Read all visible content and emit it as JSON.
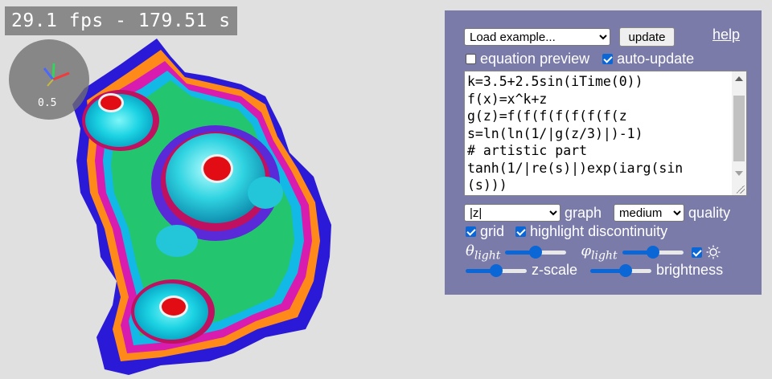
{
  "overlay": {
    "fps_text": "29.1 fps - 179.51 s",
    "axes_scale": "0.5"
  },
  "panel": {
    "example_select": "Load example...",
    "update_label": "update",
    "help_label": "help",
    "equation_preview": {
      "label": "equation preview",
      "checked": false
    },
    "auto_update": {
      "label": "auto-update",
      "checked": true
    },
    "equation_lines": [
      "k=3.5+2.5sin(iTime(0))",
      "f(x)=x^k+z",
      "g(z)=f(f(f(f(f(f(f(z",
      "s=ln(ln(1/|g(z/3)|)-1)",
      "# artistic part",
      "tanh(1/|re(s)|)exp(iarg(sin",
      "(s)))"
    ],
    "graph_select": "|z|",
    "graph_label": "graph",
    "quality_select": "medium",
    "quality_label": "quality",
    "grid": {
      "label": "grid",
      "checked": true
    },
    "highlight_discontinuity": {
      "label": "highlight discontinuity",
      "checked": true
    },
    "theta_light": {
      "symbol": "θ",
      "sub": "light",
      "value": 0.5
    },
    "phi_light": {
      "symbol": "φ",
      "sub": "light",
      "value": 0.5
    },
    "sun_toggle": {
      "checked": true,
      "icon": "sun-icon"
    },
    "z_scale": {
      "label": "z-scale",
      "value": 0.5
    },
    "brightness": {
      "label": "brightness",
      "value": 0.6
    }
  },
  "colors": {
    "panel_bg": "#7a7ba8",
    "accent": "#0b67d6",
    "background": "#e0e0e0"
  }
}
